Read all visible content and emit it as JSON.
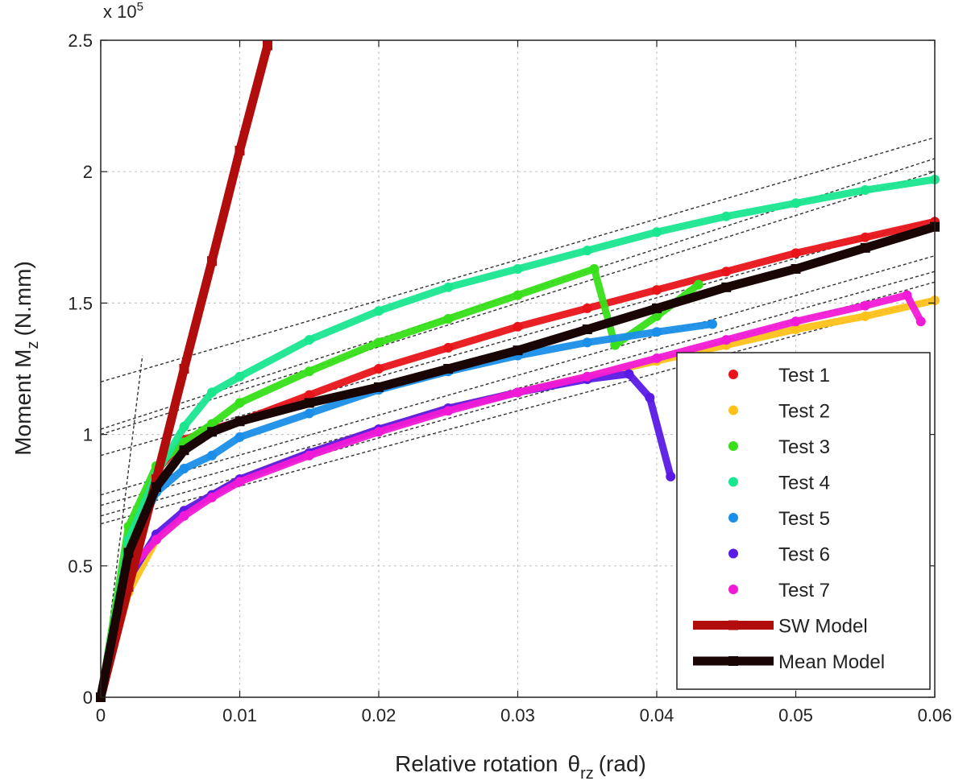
{
  "chart_data": {
    "type": "scatter",
    "xlabel_main": "Relative rotation",
    "xlabel_symbol": "θ",
    "xlabel_sub": "rz",
    "xlabel_unit": "(rad)",
    "ylabel_main": "Moment M",
    "ylabel_sub": "z",
    "ylabel_unit": "(N.mm)",
    "y_multiplier_base": "x 10",
    "y_multiplier_exp": "5",
    "xlim": [
      0,
      0.06
    ],
    "ylim": [
      0,
      2.5
    ],
    "x_ticks": [
      0,
      0.01,
      0.02,
      0.03,
      0.04,
      0.05,
      0.06
    ],
    "x_tick_labels": [
      "0",
      "0.01",
      "0.02",
      "0.03",
      "0.04",
      "0.05",
      "0.06"
    ],
    "y_ticks": [
      0,
      0.5,
      1,
      1.5,
      2,
      2.5
    ],
    "y_tick_labels": [
      "0",
      "0.5",
      "1",
      "1.5",
      "2",
      "2.5"
    ],
    "grid": true,
    "legend_position": "bottom-right",
    "series": [
      {
        "name": "Test 1",
        "color": "#e8141a",
        "style": "points",
        "x": [
          0,
          0.002,
          0.004,
          0.006,
          0.008,
          0.01,
          0.015,
          0.02,
          0.025,
          0.03,
          0.035,
          0.04,
          0.045,
          0.05,
          0.055,
          0.06
        ],
        "y": [
          0,
          0.6,
          0.86,
          0.98,
          1.02,
          1.05,
          1.15,
          1.25,
          1.33,
          1.41,
          1.48,
          1.55,
          1.62,
          1.69,
          1.75,
          1.81
        ]
      },
      {
        "name": "Test 2",
        "color": "#ffc21a",
        "style": "points",
        "x": [
          0,
          0.002,
          0.004,
          0.006,
          0.008,
          0.01,
          0.015,
          0.02,
          0.025,
          0.03,
          0.035,
          0.04,
          0.045,
          0.05,
          0.055,
          0.06
        ],
        "y": [
          0,
          0.4,
          0.6,
          0.7,
          0.77,
          0.83,
          0.93,
          1.02,
          1.1,
          1.16,
          1.22,
          1.28,
          1.34,
          1.4,
          1.45,
          1.51
        ]
      },
      {
        "name": "Test 3",
        "color": "#37e01a",
        "style": "points",
        "x": [
          0,
          0.002,
          0.004,
          0.006,
          0.008,
          0.01,
          0.015,
          0.02,
          0.025,
          0.03,
          0.0355,
          0.037,
          0.04,
          0.043
        ],
        "y": [
          0,
          0.65,
          0.88,
          0.97,
          1.04,
          1.12,
          1.24,
          1.35,
          1.44,
          1.53,
          1.63,
          1.34,
          1.45,
          1.57
        ]
      },
      {
        "name": "Test 4",
        "color": "#1ae68f",
        "style": "points",
        "x": [
          0,
          0.002,
          0.004,
          0.006,
          0.008,
          0.01,
          0.015,
          0.02,
          0.025,
          0.03,
          0.035,
          0.04,
          0.045,
          0.05,
          0.055,
          0.06
        ],
        "y": [
          0,
          0.6,
          0.85,
          1.03,
          1.16,
          1.22,
          1.36,
          1.47,
          1.56,
          1.63,
          1.7,
          1.77,
          1.83,
          1.88,
          1.93,
          1.97
        ]
      },
      {
        "name": "Test 5",
        "color": "#1a8ee8",
        "style": "points",
        "x": [
          0,
          0.002,
          0.004,
          0.006,
          0.008,
          0.01,
          0.015,
          0.02,
          0.025,
          0.03,
          0.035,
          0.04,
          0.044
        ],
        "y": [
          0,
          0.55,
          0.78,
          0.87,
          0.92,
          0.99,
          1.08,
          1.17,
          1.24,
          1.3,
          1.35,
          1.39,
          1.42
        ]
      },
      {
        "name": "Test 6",
        "color": "#5a1ae6",
        "style": "points",
        "x": [
          0,
          0.002,
          0.004,
          0.006,
          0.008,
          0.01,
          0.015,
          0.02,
          0.025,
          0.03,
          0.035,
          0.038,
          0.0395,
          0.041
        ],
        "y": [
          0,
          0.45,
          0.62,
          0.71,
          0.77,
          0.83,
          0.93,
          1.02,
          1.1,
          1.16,
          1.21,
          1.23,
          1.14,
          0.84
        ]
      },
      {
        "name": "Test 7",
        "color": "#f21ad6",
        "style": "points",
        "x": [
          0,
          0.002,
          0.004,
          0.006,
          0.008,
          0.01,
          0.015,
          0.02,
          0.025,
          0.03,
          0.035,
          0.04,
          0.045,
          0.05,
          0.055,
          0.058,
          0.059
        ],
        "y": [
          0,
          0.48,
          0.6,
          0.69,
          0.76,
          0.82,
          0.92,
          1.01,
          1.09,
          1.16,
          1.22,
          1.29,
          1.36,
          1.43,
          1.49,
          1.53,
          1.43
        ]
      },
      {
        "name": "SW Model",
        "color": "#b20d0d",
        "style": "thick-line",
        "x": [
          0,
          0.002,
          0.004,
          0.006,
          0.008,
          0.01,
          0.012
        ],
        "y": [
          0,
          0.42,
          0.83,
          1.25,
          1.66,
          2.08,
          2.48
        ]
      },
      {
        "name": "Mean Model",
        "color": "#1a0505",
        "style": "thick-line",
        "x": [
          0,
          0.002,
          0.004,
          0.006,
          0.008,
          0.01,
          0.015,
          0.02,
          0.025,
          0.03,
          0.035,
          0.04,
          0.045,
          0.05,
          0.055,
          0.06
        ],
        "y": [
          0,
          0.55,
          0.8,
          0.94,
          1.01,
          1.05,
          1.12,
          1.18,
          1.25,
          1.32,
          1.4,
          1.48,
          1.56,
          1.63,
          1.71,
          1.79
        ]
      }
    ],
    "fit_lines": [
      {
        "x": [
          0,
          0.06
        ],
        "y": [
          1.2,
          2.13
        ]
      },
      {
        "x": [
          0,
          0.06
        ],
        "y": [
          1.02,
          2.05
        ]
      },
      {
        "x": [
          0,
          0.06
        ],
        "y": [
          1.0,
          2.0
        ]
      },
      {
        "x": [
          0,
          0.06
        ],
        "y": [
          0.92,
          1.82
        ]
      },
      {
        "x": [
          0,
          0.06
        ],
        "y": [
          0.77,
          1.68
        ]
      },
      {
        "x": [
          0,
          0.06
        ],
        "y": [
          0.73,
          1.62
        ]
      },
      {
        "x": [
          0,
          0.06
        ],
        "y": [
          0.69,
          1.58
        ]
      },
      {
        "x": [
          0,
          0.06
        ],
        "y": [
          0.66,
          1.52
        ]
      },
      {
        "x": [
          0,
          0.003
        ],
        "y": [
          0,
          1.3
        ]
      }
    ]
  }
}
